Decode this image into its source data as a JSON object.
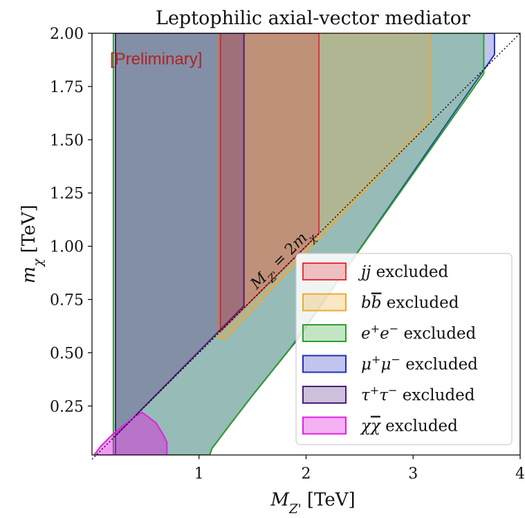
{
  "chart_data": {
    "type": "area",
    "title": "Leptophilic axial-vector mediator",
    "annotation": "[Preliminary]",
    "xlabel": "M_{Z'} [TeV]",
    "ylabel": "m_χ [TeV]",
    "xlim": [
      0,
      4
    ],
    "ylim": [
      0.02,
      2.0
    ],
    "xticks": [
      "1",
      "2",
      "3",
      "4"
    ],
    "yticks": [
      "0.25",
      "0.50",
      "0.75",
      "1.00",
      "1.25",
      "1.50",
      "1.75",
      "2.00"
    ],
    "diagonal_label": "M_{Z'} = 2m_χ",
    "legend_position": "lower right",
    "colors": {
      "jj": "#e8323c",
      "bb": "#f0a830",
      "ee": "#2ca02c",
      "mumu": "#1f2fbf",
      "tautau": "#4b1d7a",
      "chichi": "#e020e0",
      "annotation": "#b22222"
    },
    "series": [
      {
        "name": "$jj$ excluded",
        "key": "jj",
        "points": [
          [
            1.2,
            0.6
          ],
          [
            1.2,
            2.0
          ],
          [
            2.12,
            2.0
          ],
          [
            2.12,
            1.06
          ],
          [
            1.2,
            0.6
          ]
        ]
      },
      {
        "name": "$b\\bar{b}$ excluded",
        "key": "bb",
        "points": [
          [
            1.18,
            0.57
          ],
          [
            1.18,
            2.0
          ],
          [
            3.16,
            2.0
          ],
          [
            3.16,
            1.59
          ],
          [
            1.25,
            0.57
          ],
          [
            1.18,
            0.57
          ]
        ]
      },
      {
        "name": "$e^+e^-$ excluded",
        "key": "ee",
        "points": [
          [
            0.2,
            0.02
          ],
          [
            0.2,
            2.0
          ],
          [
            3.66,
            2.0
          ],
          [
            3.66,
            1.81
          ],
          [
            1.85,
            0.52
          ],
          [
            1.5,
            0.3
          ],
          [
            1.3,
            0.17
          ],
          [
            1.12,
            0.05
          ],
          [
            1.1,
            0.02
          ],
          [
            0.2,
            0.02
          ]
        ]
      },
      {
        "name": "$\\mu^+\\mu^-$ excluded",
        "key": "mumu",
        "points": [
          [
            0.22,
            0.02
          ],
          [
            0.22,
            2.0
          ],
          [
            3.76,
            2.0
          ],
          [
            3.76,
            1.9
          ],
          [
            1.9,
            0.55
          ],
          [
            1.5,
            0.3
          ],
          [
            1.3,
            0.17
          ],
          [
            1.12,
            0.05
          ],
          [
            1.1,
            0.02
          ],
          [
            0.22,
            0.02
          ]
        ]
      },
      {
        "name": "$\\tau^+\\tau^-$ excluded",
        "key": "tautau",
        "points": [
          [
            0.22,
            0.02
          ],
          [
            0.22,
            2.0
          ],
          [
            1.42,
            2.0
          ],
          [
            1.42,
            0.72
          ],
          [
            0.22,
            0.11
          ],
          [
            0.22,
            0.02
          ]
        ]
      },
      {
        "name": "$\\chi\\bar{\\chi}$ excluded",
        "key": "chichi",
        "points": [
          [
            0.02,
            0.02
          ],
          [
            0.08,
            0.06
          ],
          [
            0.2,
            0.12
          ],
          [
            0.4,
            0.2
          ],
          [
            0.47,
            0.22
          ],
          [
            0.6,
            0.17
          ],
          [
            0.66,
            0.12
          ],
          [
            0.7,
            0.08
          ],
          [
            0.7,
            0.02
          ],
          [
            0.02,
            0.02
          ]
        ]
      }
    ],
    "reference_line": {
      "x": [
        0,
        4
      ],
      "y": [
        0,
        2.0
      ],
      "style": "dotted"
    }
  }
}
